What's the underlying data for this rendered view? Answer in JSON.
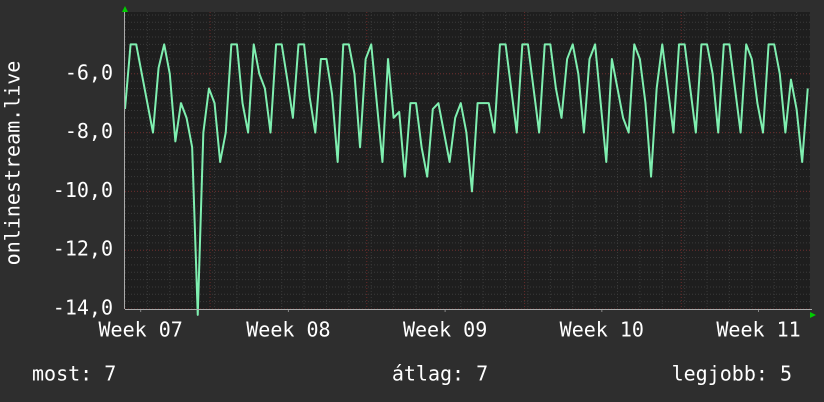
{
  "chart_data": {
    "type": "line",
    "y_label": "onlinestream.live",
    "x": [
      0,
      0.25,
      0.5,
      0.75,
      1,
      1.25,
      1.5,
      1.75,
      2,
      2.25,
      2.5,
      2.75,
      3,
      3.25,
      3.5,
      3.75,
      4,
      4.25,
      4.5,
      4.75,
      5,
      5.25,
      5.5,
      5.75,
      6,
      6.25,
      6.5,
      6.75,
      7,
      7.25,
      7.5,
      7.75,
      8,
      8.25,
      8.5,
      8.75,
      9,
      9.25,
      9.5,
      9.75,
      10,
      10.25,
      10.5,
      10.75,
      11,
      11.25,
      11.5,
      11.75,
      12,
      12.25,
      12.5,
      12.75,
      13,
      13.25,
      13.5,
      13.75,
      14,
      14.25,
      14.5,
      14.75,
      15,
      15.25,
      15.5,
      15.75,
      16,
      16.25,
      16.5,
      16.75,
      17,
      17.25,
      17.5,
      17.75,
      18,
      18.25,
      18.5,
      18.75,
      19,
      19.25,
      19.5,
      19.75,
      20,
      20.25,
      20.5,
      20.75,
      21,
      21.25,
      21.5,
      21.75,
      22,
      22.25,
      22.5,
      22.75,
      23,
      23.25,
      23.5,
      23.75,
      24,
      24.25,
      24.5,
      24.75,
      25,
      25.25,
      25.5,
      25.75,
      26,
      26.25,
      26.5,
      26.75,
      27,
      27.25,
      27.5,
      27.75,
      28,
      28.25,
      28.5,
      28.75,
      29,
      29.25,
      29.5,
      29.75,
      30,
      30.25,
      30.5
    ],
    "series": [
      {
        "name": "onlinestream.live",
        "color": "#7fefb0",
        "values": [
          -7.2,
          -5,
          -5,
          -6,
          -7,
          -8,
          -5.8,
          -5,
          -6,
          -8.3,
          -7,
          -7.5,
          -8.5,
          -14.2,
          -8,
          -6.5,
          -7,
          -9,
          -8,
          -5,
          -5,
          -7,
          -8,
          -5,
          -6,
          -6.5,
          -8,
          -5,
          -5,
          -6.2,
          -7.5,
          -5,
          -5,
          -6.8,
          -8,
          -5.5,
          -5.5,
          -6.7,
          -9,
          -5,
          -5,
          -6,
          -8.5,
          -5.5,
          -5,
          -7,
          -9,
          -5.5,
          -7.5,
          -7.3,
          -9.5,
          -7,
          -7,
          -8.5,
          -9.5,
          -7.2,
          -7,
          -8,
          -9,
          -7.5,
          -7,
          -8,
          -10,
          -7,
          -7,
          -7,
          -8,
          -5,
          -5,
          -6.5,
          -8,
          -5,
          -5,
          -6.5,
          -8,
          -5,
          -5,
          -6.5,
          -7.5,
          -5.5,
          -5,
          -6,
          -8,
          -5.5,
          -5,
          -7,
          -9,
          -5.5,
          -6.5,
          -7.5,
          -8,
          -5,
          -5.5,
          -7,
          -9.5,
          -6.5,
          -5,
          -6.5,
          -8,
          -5,
          -5,
          -6.5,
          -8,
          -5,
          -5,
          -6,
          -8,
          -5,
          -5,
          -6.5,
          -8,
          -5,
          -5.5,
          -7,
          -8,
          -5,
          -5,
          -6,
          -8,
          -6.2,
          -7.2,
          -9,
          -6.5
        ]
      }
    ],
    "xlim": [
      0,
      30.6
    ],
    "xticks": [
      {
        "value": 0.7,
        "label": "Week 07"
      },
      {
        "value": 7.3,
        "label": "Week 08"
      },
      {
        "value": 14.3,
        "label": "Week 09"
      },
      {
        "value": 21.3,
        "label": "Week 10"
      },
      {
        "value": 28.3,
        "label": "Week 11"
      }
    ],
    "x_major_grid": [
      3.8,
      10.8,
      17.85,
      24.85
    ],
    "ylim": [
      -14,
      -3.9
    ],
    "yticks": [
      {
        "value": -14,
        "label": "-14,0"
      },
      {
        "value": -12,
        "label": "-12,0"
      },
      {
        "value": -10,
        "label": "-10,0"
      },
      {
        "value": -8,
        "label": "-8,0"
      },
      {
        "value": -6,
        "label": "-6,0"
      }
    ],
    "grid": true,
    "legend_stats": [
      "most: 7",
      "átlag: 7",
      "legjobb: 5"
    ]
  }
}
